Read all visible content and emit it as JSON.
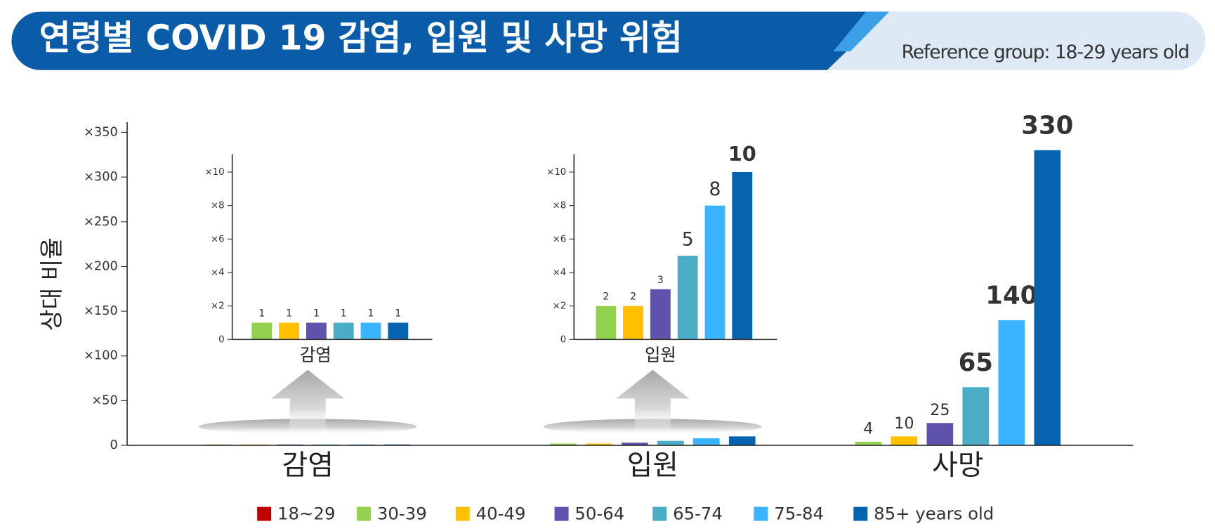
{
  "header": {
    "title": "연령별 COVID 19 감염, 입원 및 사망 위험",
    "reference": "Reference group: 18-29 years old"
  },
  "chart_data": [
    {
      "type": "bar",
      "ylabel": "상대 비율",
      "categories": [
        "감염",
        "입원",
        "사망"
      ],
      "series": [
        {
          "name": "18~29",
          "color": "#c00000",
          "values": [
            null,
            null,
            null
          ]
        },
        {
          "name": "30-39",
          "color": "#92d050",
          "values": [
            1,
            2,
            4
          ],
          "value_labels": [
            null,
            null,
            "4"
          ]
        },
        {
          "name": "40-49",
          "color": "#ffc000",
          "values": [
            1,
            2,
            10
          ],
          "value_labels": [
            null,
            null,
            "10"
          ]
        },
        {
          "name": "50-64",
          "color": "#5f52ad",
          "values": [
            1,
            3,
            25
          ],
          "value_labels": [
            null,
            null,
            "25"
          ]
        },
        {
          "name": "65-74",
          "color": "#4bacc6",
          "values": [
            1,
            5,
            65
          ],
          "value_labels": [
            null,
            null,
            "65"
          ]
        },
        {
          "name": "75-84",
          "color": "#3bb4ff",
          "values": [
            1,
            8,
            140
          ],
          "value_labels": [
            null,
            null,
            "140"
          ]
        },
        {
          "name": "85+ years old",
          "color": "#0563b0",
          "values": [
            1,
            10,
            330
          ],
          "value_labels": [
            null,
            null,
            "330"
          ]
        }
      ],
      "ylim": [
        0,
        360
      ],
      "yticks": [
        0,
        {
          "value": 50,
          "label": "×50"
        },
        {
          "value": 100,
          "label": "×100"
        },
        {
          "value": 150,
          "label": "×150"
        },
        {
          "value": 200,
          "label": "×200"
        },
        {
          "value": 250,
          "label": "×250"
        },
        {
          "value": 300,
          "label": "×300"
        },
        {
          "value": 350,
          "label": "×350"
        }
      ],
      "legend": "bottom"
    },
    {
      "type": "bar",
      "xlabel": "감염",
      "values": [
        1,
        1,
        1,
        1,
        1,
        1
      ],
      "colors": [
        "#92d050",
        "#ffc000",
        "#5f52ad",
        "#4bacc6",
        "#3bb4ff",
        "#0563b0"
      ],
      "ylim": [
        0,
        11
      ],
      "yticks": [
        0,
        {
          "value": 2,
          "label": "×2"
        },
        {
          "value": 4,
          "label": "×4"
        },
        {
          "value": 6,
          "label": "×6"
        },
        {
          "value": 8,
          "label": "×8"
        },
        {
          "value": 10,
          "label": "×10"
        }
      ]
    },
    {
      "type": "bar",
      "xlabel": "입원",
      "values": [
        2,
        2,
        3,
        5,
        8,
        10
      ],
      "colors": [
        "#92d050",
        "#ffc000",
        "#5f52ad",
        "#4bacc6",
        "#3bb4ff",
        "#0563b0"
      ],
      "ylim": [
        0,
        11
      ],
      "yticks": [
        0,
        {
          "value": 2,
          "label": "×2"
        },
        {
          "value": 4,
          "label": "×4"
        },
        {
          "value": 6,
          "label": "×6"
        },
        {
          "value": 8,
          "label": "×8"
        },
        {
          "value": 10,
          "label": "×10"
        }
      ]
    }
  ]
}
